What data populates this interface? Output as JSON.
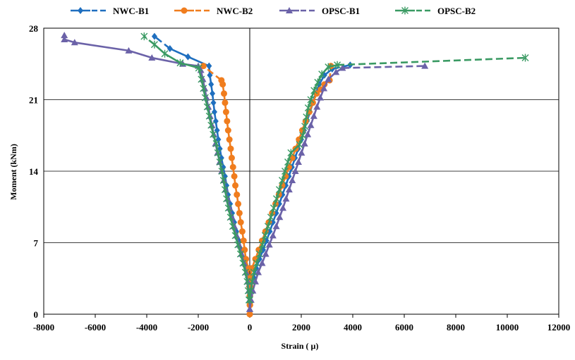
{
  "chart_data": {
    "type": "line",
    "title": "",
    "xlabel": "Strain ( µ)",
    "ylabel": "Moment (kNm)",
    "xlim": [
      -8000,
      12000
    ],
    "ylim": [
      0,
      28
    ],
    "xticks": [
      -8000,
      -6000,
      -4000,
      -2000,
      0,
      2000,
      4000,
      6000,
      8000,
      10000,
      12000
    ],
    "yticks": [
      0,
      7,
      14,
      21,
      28
    ],
    "grid": "horizontal at y ticks",
    "legend_position": "top",
    "series": [
      {
        "name": "NWC-B1",
        "color": "#1f6fbf",
        "marker": "diamond",
        "branches": [
          [
            [
              0,
              0.9
            ],
            [
              0,
              1.8
            ],
            [
              -40,
              2.7
            ],
            [
              -80,
              3.6
            ],
            [
              -130,
              4.5
            ],
            [
              -220,
              5.4
            ],
            [
              -320,
              6.3
            ],
            [
              -420,
              7.2
            ],
            [
              -520,
              8.1
            ],
            [
              -600,
              9.0
            ],
            [
              -680,
              9.9
            ],
            [
              -760,
              10.8
            ],
            [
              -840,
              11.7
            ],
            [
              -900,
              12.6
            ],
            [
              -960,
              13.5
            ],
            [
              -1030,
              14.4
            ],
            [
              -1100,
              15.3
            ],
            [
              -1160,
              16.2
            ],
            [
              -1220,
              17.1
            ],
            [
              -1270,
              18.0
            ],
            [
              -1320,
              18.9
            ],
            [
              -1370,
              19.8
            ],
            [
              -1410,
              20.7
            ],
            [
              -1450,
              21.6
            ],
            [
              -1500,
              22.5
            ],
            [
              -1550,
              23.4
            ],
            [
              -1580,
              24.3
            ],
            [
              -2400,
              25.2
            ],
            [
              -3100,
              26.0
            ],
            [
              -3700,
              27.2
            ]
          ],
          [
            [
              0,
              0.9
            ],
            [
              20,
              1.8
            ],
            [
              60,
              2.7
            ],
            [
              150,
              3.6
            ],
            [
              250,
              4.5
            ],
            [
              380,
              5.4
            ],
            [
              520,
              6.3
            ],
            [
              650,
              7.2
            ],
            [
              780,
              8.1
            ],
            [
              900,
              9.0
            ],
            [
              1030,
              9.9
            ],
            [
              1150,
              10.8
            ],
            [
              1270,
              11.7
            ],
            [
              1400,
              12.6
            ],
            [
              1520,
              13.5
            ],
            [
              1640,
              14.4
            ],
            [
              1760,
              15.3
            ],
            [
              1880,
              16.2
            ],
            [
              2000,
              17.1
            ],
            [
              2110,
              18.0
            ],
            [
              2220,
              18.9
            ],
            [
              2340,
              19.8
            ],
            [
              2450,
              20.7
            ],
            [
              2560,
              21.6
            ],
            [
              2700,
              22.5
            ],
            [
              2900,
              23.4
            ],
            [
              3200,
              24.0
            ],
            [
              3900,
              24.4
            ]
          ]
        ]
      },
      {
        "name": "NWC-B2",
        "color": "#f07d1e",
        "marker": "circle",
        "branches": [
          [
            [
              0,
              0
            ],
            [
              0,
              0.9
            ],
            [
              0,
              1.8
            ],
            [
              -10,
              2.7
            ],
            [
              -30,
              3.6
            ],
            [
              -60,
              4.5
            ],
            [
              -150,
              5.4
            ],
            [
              -200,
              6.3
            ],
            [
              -240,
              7.2
            ],
            [
              -290,
              8.1
            ],
            [
              -350,
              9.0
            ],
            [
              -400,
              9.9
            ],
            [
              -450,
              10.8
            ],
            [
              -500,
              11.7
            ],
            [
              -560,
              12.6
            ],
            [
              -600,
              13.5
            ],
            [
              -650,
              14.4
            ],
            [
              -700,
              15.3
            ],
            [
              -740,
              16.2
            ],
            [
              -790,
              17.1
            ],
            [
              -840,
              18.0
            ],
            [
              -880,
              18.9
            ],
            [
              -920,
              19.8
            ],
            [
              -960,
              20.7
            ],
            [
              -1000,
              21.6
            ],
            [
              -1050,
              22.5
            ],
            [
              -1100,
              22.9
            ],
            [
              -1800,
              24.3
            ]
          ],
          [
            [
              0,
              0
            ],
            [
              10,
              0.9
            ],
            [
              10,
              1.8
            ],
            [
              20,
              2.7
            ],
            [
              30,
              3.6
            ],
            [
              80,
              4.5
            ],
            [
              220,
              5.4
            ],
            [
              350,
              6.3
            ],
            [
              480,
              7.2
            ],
            [
              610,
              8.1
            ],
            [
              740,
              9.0
            ],
            [
              870,
              9.9
            ],
            [
              1000,
              10.8
            ],
            [
              1130,
              11.7
            ],
            [
              1260,
              12.6
            ],
            [
              1390,
              13.5
            ],
            [
              1520,
              14.4
            ],
            [
              1650,
              15.3
            ],
            [
              1780,
              16.2
            ],
            [
              1910,
              17.1
            ],
            [
              2040,
              18.0
            ],
            [
              2170,
              18.9
            ],
            [
              2310,
              19.8
            ],
            [
              2450,
              20.7
            ],
            [
              2600,
              21.6
            ],
            [
              2760,
              22.0
            ],
            [
              2900,
              22.5
            ],
            [
              3100,
              22.9
            ],
            [
              3150,
              24.3
            ]
          ]
        ]
      },
      {
        "name": "OPSC-B1",
        "color": "#6b62a8",
        "marker": "triangle",
        "branches": [
          [
            [
              0,
              0.5
            ],
            [
              -10,
              1.4
            ],
            [
              -40,
              2.3
            ],
            [
              -80,
              3.2
            ],
            [
              -140,
              4.1
            ],
            [
              -220,
              5.0
            ],
            [
              -320,
              5.9
            ],
            [
              -420,
              6.8
            ],
            [
              -510,
              7.7
            ],
            [
              -600,
              8.6
            ],
            [
              -690,
              9.5
            ],
            [
              -780,
              10.4
            ],
            [
              -860,
              11.3
            ],
            [
              -940,
              12.2
            ],
            [
              -1010,
              13.1
            ],
            [
              -1090,
              14.0
            ],
            [
              -1170,
              14.9
            ],
            [
              -1250,
              15.8
            ],
            [
              -1330,
              16.7
            ],
            [
              -1400,
              17.6
            ],
            [
              -1470,
              18.5
            ],
            [
              -1540,
              19.4
            ],
            [
              -1610,
              20.3
            ],
            [
              -1680,
              21.2
            ],
            [
              -1750,
              22.1
            ],
            [
              -1820,
              23.0
            ],
            [
              -1900,
              23.9
            ],
            [
              -2000,
              24.3
            ],
            [
              -2600,
              24.5
            ],
            [
              -3800,
              25.1
            ],
            [
              -4700,
              25.8
            ],
            [
              -6800,
              26.6
            ],
            [
              -7200,
              26.9
            ],
            [
              -7200,
              27.3
            ]
          ],
          [
            [
              0,
              0.5
            ],
            [
              50,
              1.4
            ],
            [
              120,
              2.3
            ],
            [
              220,
              3.2
            ],
            [
              330,
              4.1
            ],
            [
              480,
              5.0
            ],
            [
              620,
              5.9
            ],
            [
              760,
              6.8
            ],
            [
              900,
              7.7
            ],
            [
              1030,
              8.6
            ],
            [
              1160,
              9.5
            ],
            [
              1290,
              10.4
            ],
            [
              1410,
              11.3
            ],
            [
              1530,
              12.2
            ],
            [
              1650,
              13.1
            ],
            [
              1770,
              14.0
            ],
            [
              1890,
              14.9
            ],
            [
              2010,
              15.8
            ],
            [
              2130,
              16.7
            ],
            [
              2250,
              17.6
            ],
            [
              2370,
              18.5
            ],
            [
              2490,
              19.4
            ],
            [
              2610,
              20.3
            ],
            [
              2740,
              21.2
            ],
            [
              2880,
              22.1
            ],
            [
              3050,
              23.0
            ],
            [
              3350,
              23.7
            ],
            [
              3600,
              24.1
            ],
            [
              6800,
              24.3
            ]
          ]
        ]
      },
      {
        "name": "OPSC-B2",
        "color": "#3a9a63",
        "marker": "star",
        "branches": [
          [
            [
              -30,
              1.4
            ],
            [
              -60,
              2.3
            ],
            [
              -100,
              3.2
            ],
            [
              -170,
              4.1
            ],
            [
              -260,
              5.0
            ],
            [
              -360,
              5.9
            ],
            [
              -460,
              6.8
            ],
            [
              -560,
              7.7
            ],
            [
              -660,
              8.6
            ],
            [
              -750,
              9.5
            ],
            [
              -830,
              10.4
            ],
            [
              -900,
              11.3
            ],
            [
              -960,
              12.2
            ],
            [
              -1020,
              13.1
            ],
            [
              -1080,
              14.0
            ],
            [
              -1160,
              14.9
            ],
            [
              -1240,
              15.8
            ],
            [
              -1300,
              16.7
            ],
            [
              -1420,
              17.6
            ],
            [
              -1500,
              18.5
            ],
            [
              -1570,
              19.4
            ],
            [
              -1650,
              20.3
            ],
            [
              -1730,
              21.2
            ],
            [
              -1800,
              22.1
            ],
            [
              -1880,
              23.0
            ],
            [
              -1980,
              24.1
            ],
            [
              -2700,
              24.6
            ],
            [
              -3300,
              25.5
            ],
            [
              -3700,
              26.4
            ],
            [
              -4100,
              27.2
            ]
          ],
          [
            [
              0,
              1.4
            ],
            [
              40,
              2.3
            ],
            [
              90,
              3.2
            ],
            [
              160,
              4.1
            ],
            [
              270,
              5.0
            ],
            [
              380,
              5.9
            ],
            [
              490,
              6.8
            ],
            [
              600,
              7.7
            ],
            [
              710,
              8.6
            ],
            [
              820,
              9.5
            ],
            [
              930,
              10.4
            ],
            [
              1040,
              11.3
            ],
            [
              1150,
              12.2
            ],
            [
              1260,
              13.1
            ],
            [
              1370,
              14.0
            ],
            [
              1480,
              14.9
            ],
            [
              1600,
              15.8
            ],
            [
              1930,
              16.6
            ],
            [
              2060,
              17.5
            ],
            [
              2140,
              18.4
            ],
            [
              2200,
              19.3
            ],
            [
              2270,
              20.2
            ],
            [
              2370,
              21.0
            ],
            [
              2500,
              21.9
            ],
            [
              2640,
              22.7
            ],
            [
              2800,
              23.5
            ],
            [
              3050,
              24.2
            ],
            [
              3400,
              24.4
            ],
            [
              10700,
              25.1
            ]
          ]
        ]
      }
    ]
  }
}
